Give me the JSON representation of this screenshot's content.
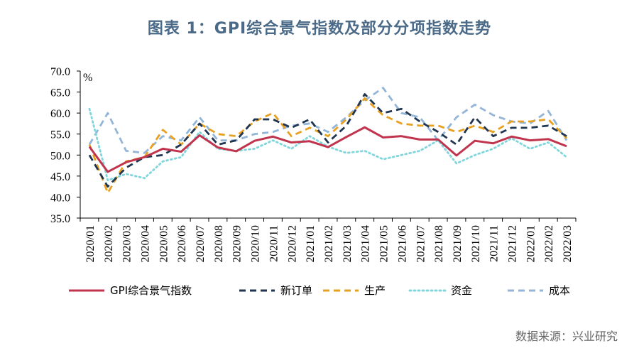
{
  "title": "图表 1：GPI综合景气指数及部分分项指数走势",
  "source": "数据来源：兴业研究",
  "chart_data": {
    "type": "line",
    "title": "图表 1：GPI综合景气指数及部分分项指数走势",
    "ylabel": "%",
    "ylim": [
      35.0,
      70.0
    ],
    "yticks": [
      "70.0",
      "65.0",
      "60.0",
      "55.0",
      "50.0",
      "45.0",
      "40.0",
      "35.0"
    ],
    "legend_position": "bottom",
    "categories": [
      "2020/01",
      "2020/02",
      "2020/03",
      "2020/04",
      "2020/05",
      "2020/06",
      "2020/07",
      "2020/08",
      "2020/09",
      "2020/10",
      "2020/11",
      "2020/12",
      "2021/01",
      "2021/02",
      "2021/03",
      "2021/04",
      "2021/05",
      "2021/06",
      "2021/07",
      "2021/08",
      "2021/09",
      "2021/10",
      "2021/11",
      "2021/12",
      "2022/01",
      "2022/02",
      "2022/03"
    ],
    "series": [
      {
        "name": "GPI综合景气指数",
        "color": "#c0344d",
        "dash": "solid",
        "values": [
          52.0,
          46.0,
          48.3,
          49.5,
          51.5,
          50.8,
          54.7,
          51.8,
          50.9,
          53.4,
          54.4,
          53.0,
          53.3,
          51.9,
          54.3,
          56.6,
          54.2,
          54.5,
          53.7,
          53.7,
          49.9,
          53.4,
          52.8,
          54.4,
          53.5,
          53.8,
          52.1
        ]
      },
      {
        "name": "新订单",
        "color": "#1f3550",
        "dash": "dashed",
        "values": [
          50.0,
          42.5,
          47.0,
          49.5,
          50.0,
          52.5,
          57.5,
          52.5,
          53.5,
          58.5,
          58.5,
          56.5,
          58.5,
          53.0,
          57.0,
          64.5,
          60.0,
          61.0,
          58.0,
          55.5,
          52.5,
          59.0,
          54.5,
          56.5,
          56.5,
          57.0,
          54.5
        ]
      },
      {
        "name": "生产",
        "color": "#e8a020",
        "dash": "dashed",
        "values": [
          52.5,
          41.0,
          48.5,
          49.5,
          56.0,
          52.5,
          57.5,
          55.0,
          54.5,
          58.0,
          60.0,
          54.5,
          56.5,
          54.5,
          58.5,
          63.5,
          59.5,
          57.5,
          57.0,
          57.0,
          55.5,
          57.0,
          55.5,
          58.0,
          58.0,
          58.5,
          54.0
        ]
      },
      {
        "name": "资金",
        "color": "#80d6dc",
        "dash": "dotted",
        "values": [
          61.0,
          44.0,
          45.5,
          44.5,
          48.5,
          49.5,
          55.5,
          51.5,
          51.0,
          51.5,
          53.5,
          51.5,
          54.5,
          52.0,
          50.5,
          51.0,
          49.0,
          50.0,
          51.0,
          53.5,
          48.0,
          50.0,
          51.5,
          54.0,
          51.5,
          53.0,
          49.5
        ]
      },
      {
        "name": "成本",
        "color": "#93b5d8",
        "dash": "dashed",
        "values": [
          52.5,
          60.0,
          51.0,
          50.5,
          54.5,
          53.5,
          59.0,
          53.5,
          53.5,
          55.0,
          55.5,
          57.0,
          57.5,
          55.5,
          59.0,
          63.0,
          66.0,
          60.0,
          59.0,
          53.5,
          59.0,
          62.0,
          59.5,
          58.0,
          57.5,
          60.5,
          53.5
        ]
      }
    ]
  }
}
